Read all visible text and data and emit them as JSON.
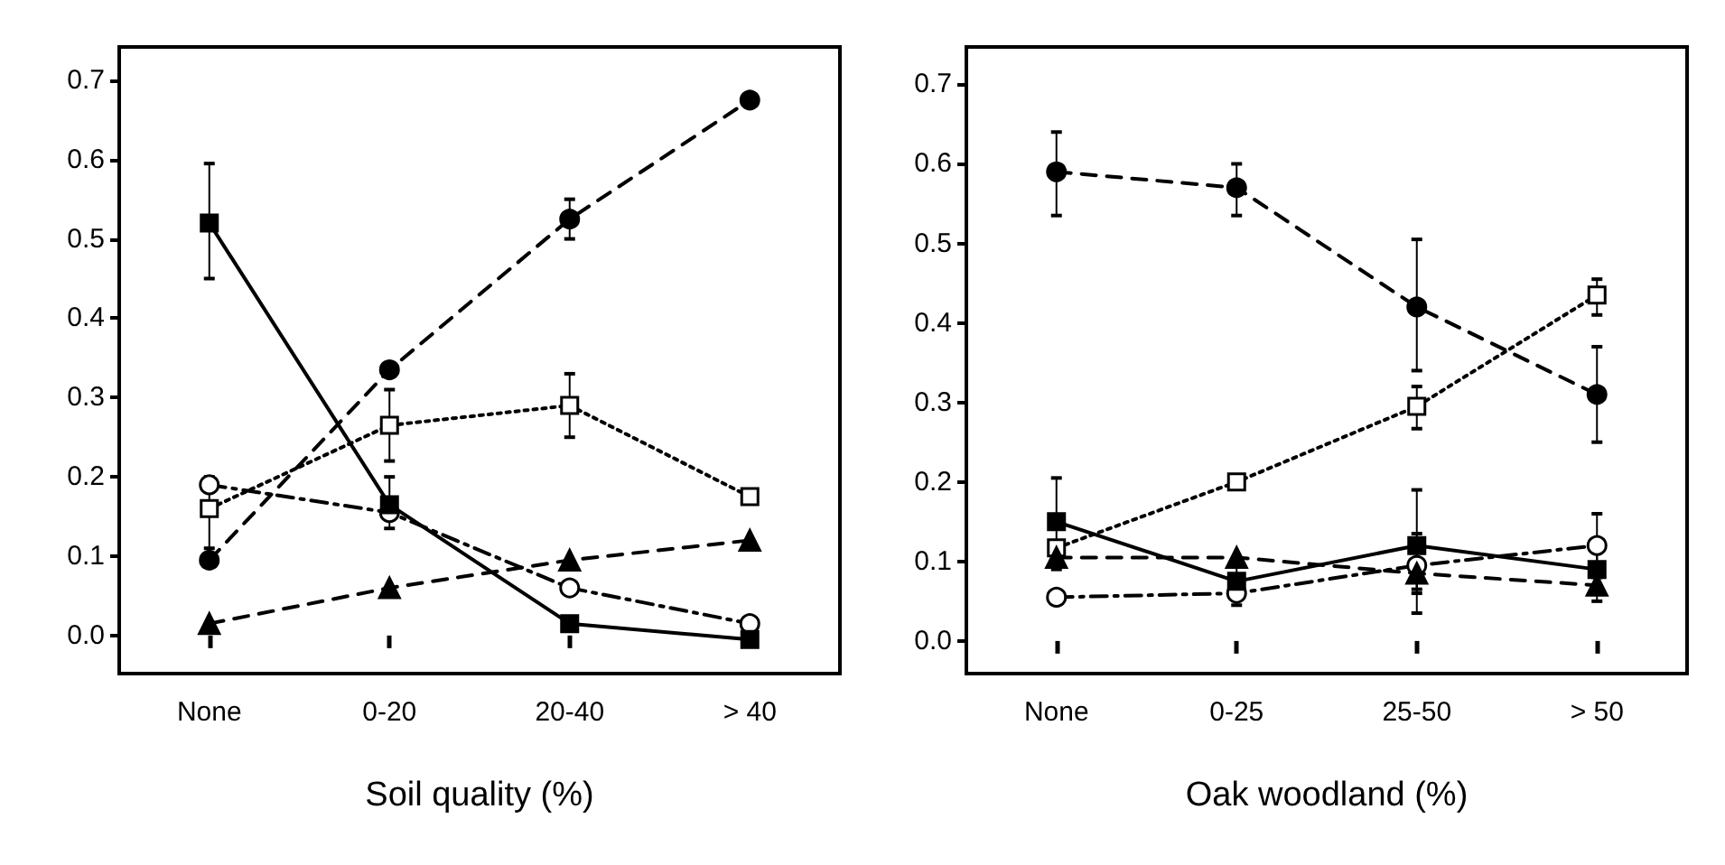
{
  "chart_data": [
    {
      "type": "line",
      "xlabel": "Soil quality (%)",
      "categories": [
        "None",
        "0-20",
        "20-40",
        "> 40"
      ],
      "ylim": [
        -0.048,
        0.742
      ],
      "yticks": [
        {
          "value": 0,
          "label": "0.0"
        },
        {
          "value": 0.1,
          "label": "0.1"
        },
        {
          "value": 0.2,
          "label": "0.2"
        },
        {
          "value": 0.3,
          "label": "0.3"
        },
        {
          "value": 0.4,
          "label": "0.4"
        },
        {
          "value": 0.5,
          "label": "0.5"
        },
        {
          "value": 0.6,
          "label": "0.6"
        },
        {
          "value": 0.7,
          "label": "0.7"
        }
      ],
      "series": [
        {
          "color": "#000000",
          "marker": "square",
          "line_style": "dotted",
          "values": [
            0.16,
            0.265,
            0.29,
            0.175
          ],
          "errors": [
            [
              0.11,
              0.2
            ],
            [
              0.22,
              0.31
            ],
            [
              0.25,
              0.33
            ],
            null
          ]
        },
        {
          "color": "#000000",
          "marker": "circle",
          "line_style": "dashed",
          "values": [
            0.095,
            0.335,
            0.525,
            0.675
          ],
          "errors": [
            null,
            null,
            [
              0.5,
              0.55
            ],
            null
          ]
        },
        {
          "color": "#000000",
          "marker": "circle",
          "line_style": "dashdot",
          "values": [
            0.19,
            0.155,
            0.06,
            0.015
          ]
        },
        {
          "color": "#000000",
          "marker": "square",
          "line_style": "solid",
          "values": [
            0.52,
            0.165,
            0.015,
            -0.005
          ],
          "errors": [
            [
              0.45,
              0.595
            ],
            [
              0.135,
              0.2
            ],
            null,
            null
          ]
        },
        {
          "color": "#000000",
          "marker": "triangle",
          "line_style": "dashed",
          "values": [
            0.015,
            0.06,
            0.095,
            0.12
          ]
        }
      ]
    },
    {
      "type": "line",
      "xlabel": "Oak woodland (%)",
      "categories": [
        "None",
        "0-25",
        "25-50",
        "> 50"
      ],
      "ylim": [
        -0.041,
        0.747
      ],
      "yticks": [
        {
          "value": 0,
          "label": "0.0"
        },
        {
          "value": 0.1,
          "label": "0.1"
        },
        {
          "value": 0.2,
          "label": "0.2"
        },
        {
          "value": 0.3,
          "label": "0.3"
        },
        {
          "value": 0.4,
          "label": "0.4"
        },
        {
          "value": 0.5,
          "label": "0.5"
        },
        {
          "value": 0.6,
          "label": "0.6"
        },
        {
          "value": 0.7,
          "label": "0.7"
        }
      ],
      "series": [
        {
          "color": "#000000",
          "marker": "square",
          "line_style": "dotted",
          "values": [
            0.117,
            0.2,
            0.295,
            0.435
          ],
          "errors": [
            null,
            null,
            [
              0.267,
              0.32
            ],
            [
              0.41,
              0.455
            ]
          ]
        },
        {
          "color": "#000000",
          "marker": "circle",
          "line_style": "dashed",
          "values": [
            0.59,
            0.57,
            0.42,
            0.31
          ],
          "errors": [
            [
              0.535,
              0.64
            ],
            [
              0.535,
              0.6
            ],
            [
              0.34,
              0.505
            ],
            [
              0.25,
              0.37
            ]
          ]
        },
        {
          "color": "#000000",
          "marker": "circle",
          "line_style": "dashdot",
          "values": [
            0.055,
            0.06,
            0.095,
            0.12
          ],
          "errors": [
            null,
            null,
            [
              0.06,
              0.135
            ],
            [
              0.08,
              0.16
            ]
          ]
        },
        {
          "color": "#000000",
          "marker": "square",
          "line_style": "solid",
          "values": [
            0.15,
            0.075,
            0.12,
            0.09
          ],
          "errors": [
            [
              0.09,
              0.205
            ],
            [
              0.045,
              0.1
            ],
            [
              0.035,
              0.19
            ],
            [
              0.05,
              0.125
            ]
          ]
        },
        {
          "color": "#000000",
          "marker": "triangle",
          "line_style": "dashed",
          "values": [
            0.105,
            0.105,
            0.085,
            0.07
          ],
          "errors": [
            null,
            null,
            [
              0.065,
              0.1
            ],
            null
          ]
        }
      ]
    }
  ]
}
